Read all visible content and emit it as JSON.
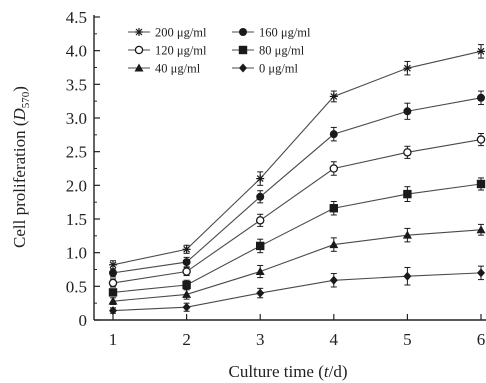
{
  "chart_data": {
    "type": "line",
    "xlabel_prefix": "Culture time (",
    "xlabel_var": "t",
    "xlabel_suffix": "/d)",
    "ylabel_prefix": "Cell proliferation (",
    "ylabel_var": "D",
    "ylabel_sub": "570",
    "ylabel_suffix": ")",
    "x": [
      1,
      2,
      3,
      4,
      5,
      6
    ],
    "x_tick_labels": [
      "1",
      "2",
      "3",
      "4",
      "5",
      "6"
    ],
    "ylim": [
      0,
      4.5
    ],
    "y_ticks": [
      0,
      0.5,
      1.0,
      1.5,
      2.0,
      2.5,
      3.0,
      3.5,
      4.0,
      4.5
    ],
    "y_tick_labels": [
      "0",
      "0.5",
      "1.0",
      "1.5",
      "2.0",
      "2.5",
      "3.0",
      "3.5",
      "4.0",
      "4.5"
    ],
    "grid": false,
    "legend_position": "top-left",
    "series": [
      {
        "name": "200 μg/ml",
        "marker": "star",
        "values": [
          0.82,
          1.05,
          2.1,
          3.32,
          3.74,
          3.99
        ],
        "errors": [
          0.06,
          0.06,
          0.1,
          0.08,
          0.1,
          0.1
        ]
      },
      {
        "name": "160 μg/ml",
        "marker": "circle",
        "values": [
          0.7,
          0.86,
          1.83,
          2.76,
          3.1,
          3.3
        ],
        "errors": [
          0.06,
          0.07,
          0.09,
          0.1,
          0.12,
          0.1
        ]
      },
      {
        "name": "120 μg/ml",
        "marker": "open-circle",
        "values": [
          0.55,
          0.72,
          1.48,
          2.25,
          2.49,
          2.68
        ],
        "errors": [
          0.06,
          0.06,
          0.09,
          0.1,
          0.09,
          0.09
        ]
      },
      {
        "name": "80 μg/ml",
        "marker": "square",
        "values": [
          0.41,
          0.52,
          1.1,
          1.66,
          1.87,
          2.02
        ],
        "errors": [
          0.05,
          0.07,
          0.1,
          0.1,
          0.11,
          0.09
        ]
      },
      {
        "name": "40 μg/ml",
        "marker": "triangle",
        "values": [
          0.28,
          0.38,
          0.72,
          1.12,
          1.26,
          1.34
        ],
        "errors": [
          0.05,
          0.07,
          0.09,
          0.1,
          0.1,
          0.08
        ]
      },
      {
        "name": "0 μg/ml",
        "marker": "diamond",
        "values": [
          0.14,
          0.19,
          0.4,
          0.59,
          0.65,
          0.7
        ],
        "errors": [
          0.04,
          0.06,
          0.07,
          0.1,
          0.13,
          0.1
        ]
      }
    ],
    "colors": {
      "line": "#4a4a4a",
      "marker": "#1a1a1a",
      "axis": "#222222"
    }
  }
}
